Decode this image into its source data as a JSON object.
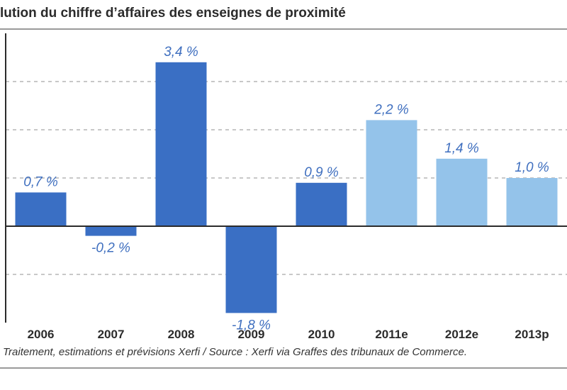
{
  "chart_data": {
    "type": "bar",
    "title": "lution du chiffre d’affaires des enseignes de proximité",
    "categories": [
      "2006",
      "2007",
      "2008",
      "2009",
      "2010",
      "2011e",
      "2012e",
      "2013p"
    ],
    "values": [
      0.7,
      -0.2,
      3.4,
      -1.8,
      0.9,
      2.2,
      1.4,
      1.0
    ],
    "value_labels": [
      "0,7 %",
      "-0,2 %",
      "3,4 %",
      "-1,8 %",
      "0,9 %",
      "2,2 %",
      "1,4 %",
      "1,0 %"
    ],
    "forecast": [
      false,
      false,
      false,
      false,
      false,
      true,
      true,
      true
    ],
    "ylim": [
      -2.0,
      4.0
    ],
    "grid_step": 1.0,
    "grid": true,
    "xlabel": "",
    "ylabel": "",
    "source": "Traitement, estimations et prévisions Xerfi / Source : Xerfi via Graffes des tribunaux de Commerce.",
    "colors": {
      "actual": "#3a6fc4",
      "forecast": "#94c3ea",
      "label": "#3f6fbf",
      "grid": "#b5b5b5",
      "axis": "#2b2b2b"
    }
  }
}
